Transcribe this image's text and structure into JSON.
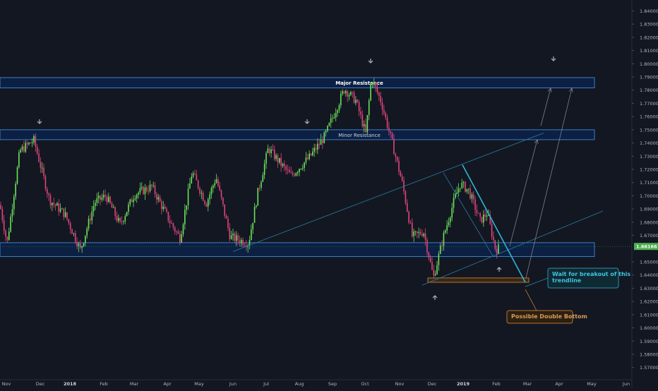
{
  "chart_data": {
    "type": "candlestick",
    "symbol_price_label": "1.66166",
    "y_ticks": [
      "1.84000",
      "1.83000",
      "1.82000",
      "1.81000",
      "1.80000",
      "1.79000",
      "1.78000",
      "1.77000",
      "1.76000",
      "1.75000",
      "1.74000",
      "1.73000",
      "1.72000",
      "1.71000",
      "1.70000",
      "1.69000",
      "1.68000",
      "1.67000",
      "1.65000",
      "1.64000",
      "1.63000",
      "1.62000",
      "1.61000",
      "1.60000",
      "1.59000",
      "1.58000",
      "1.57000"
    ],
    "x_ticks": [
      "Nov",
      "Dec",
      "2018",
      "Feb",
      "Mar",
      "Apr",
      "May",
      "Jun",
      "Jul",
      "Aug",
      "Sep",
      "Oct",
      "Nov",
      "Dec",
      "2019",
      "Feb",
      "Mar",
      "Apr",
      "May",
      "Jun"
    ],
    "ylim": [
      1.5645,
      1.8445
    ],
    "current_price": 1.66166,
    "zones": [
      {
        "name": "major-resistance",
        "label": "Major Resistance",
        "from": 1.7817,
        "to": 1.7895
      },
      {
        "name": "minor-resistance",
        "label": "Minor Resistance",
        "from": 1.7425,
        "to": 1.75
      },
      {
        "name": "support",
        "label": "",
        "from": 1.654,
        "to": 1.6645
      },
      {
        "name": "double-bottom",
        "label": "",
        "from": 1.6345,
        "to": 1.6378
      }
    ],
    "annotations": {
      "breakout_note": [
        "Wait for breakout of this",
        "trendline"
      ],
      "double_bottom_note": "Possible Double Bottom"
    },
    "candles_summary": {
      "count": 300,
      "path": [
        [
          0,
          1.693
        ],
        [
          10,
          1.664
        ],
        [
          28,
          1.734
        ],
        [
          48,
          1.742
        ],
        [
          70,
          1.697
        ],
        [
          92,
          1.686
        ],
        [
          114,
          1.659
        ],
        [
          134,
          1.695
        ],
        [
          150,
          1.7
        ],
        [
          170,
          1.678
        ],
        [
          190,
          1.701
        ],
        [
          215,
          1.707
        ],
        [
          240,
          1.681
        ],
        [
          255,
          1.668
        ],
        [
          272,
          1.718
        ],
        [
          292,
          1.694
        ],
        [
          306,
          1.714
        ],
        [
          326,
          1.669
        ],
        [
          352,
          1.664
        ],
        [
          365,
          1.702
        ],
        [
          380,
          1.736
        ],
        [
          398,
          1.724
        ],
        [
          412,
          1.715
        ],
        [
          438,
          1.729
        ],
        [
          460,
          1.745
        ],
        [
          488,
          1.781
        ],
        [
          504,
          1.772
        ],
        [
          518,
          1.747
        ],
        [
          526,
          1.789
        ],
        [
          540,
          1.771
        ],
        [
          556,
          1.739
        ],
        [
          570,
          1.709
        ],
        [
          584,
          1.669
        ],
        [
          600,
          1.673
        ],
        [
          614,
          1.638
        ],
        [
          628,
          1.669
        ],
        [
          644,
          1.698
        ],
        [
          652,
          1.709
        ],
        [
          664,
          1.704
        ],
        [
          680,
          1.681
        ],
        [
          690,
          1.687
        ],
        [
          702,
          1.659
        ],
        [
          708,
          1.661
        ]
      ]
    },
    "colors": {
      "background": "#131722",
      "bull": "#6de35a",
      "bear": "#e0457b",
      "zone_fill": "#0c2147",
      "zone_border": "#3a7fc1",
      "trendline": "#2a7aa0",
      "downtrend": "#2fb6d6",
      "orange": "#b87333",
      "arrow": "#b2b5be"
    }
  }
}
